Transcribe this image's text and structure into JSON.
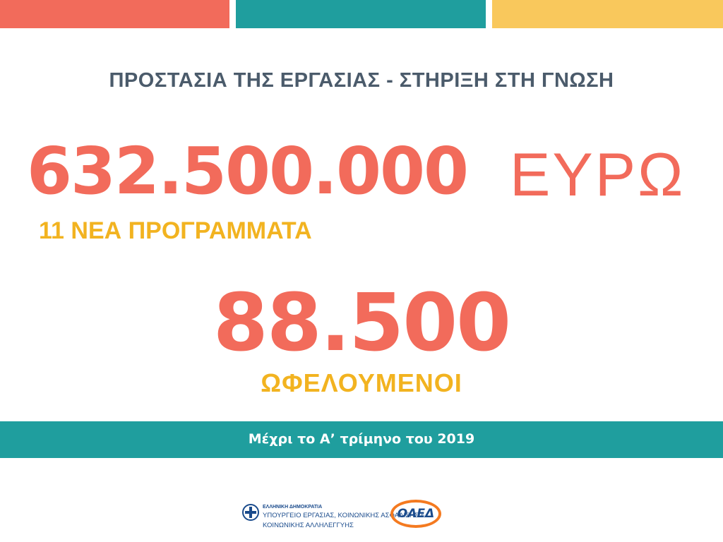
{
  "header": {
    "title": "ΠΡΟΣΤΑΣΙΑ ΤΗΣ ΕΡΓΑΣΙΑΣ - ΣΤΗΡΙΞΗ ΣΤΗ ΓΝΩΣΗ"
  },
  "budget": {
    "amount": "632.500.000",
    "currency": "ΕΥΡΩ",
    "programs": "11 ΝΕΑ ΠΡΟΓΡΑΜΜΑΤΑ"
  },
  "beneficiaries": {
    "count": "88.500",
    "label": "ΩΦΕΛΟΥΜΕΝΟΙ"
  },
  "footer": {
    "note": "Μέχρι το Α’ τρίμηνο του 2019",
    "logos": {
      "government": "ΕΛΛΗΝΙΚΗ ΔΗΜΟΚΡΑΤΙΑ",
      "ministry_line1": "ΥΠΟΥΡΓΕΙΟ ΕΡΓΑΣΙΑΣ, ΚΟΙΝΩΝΙΚΗΣ ΑΣΦΑΛΙΣΗΣ &",
      "ministry_line2": "ΚΟΙΝΩΝΙΚΗΣ ΑΛΛΗΛΕΓΓΥΗΣ",
      "agency": "ΟΑΕΔ"
    }
  }
}
